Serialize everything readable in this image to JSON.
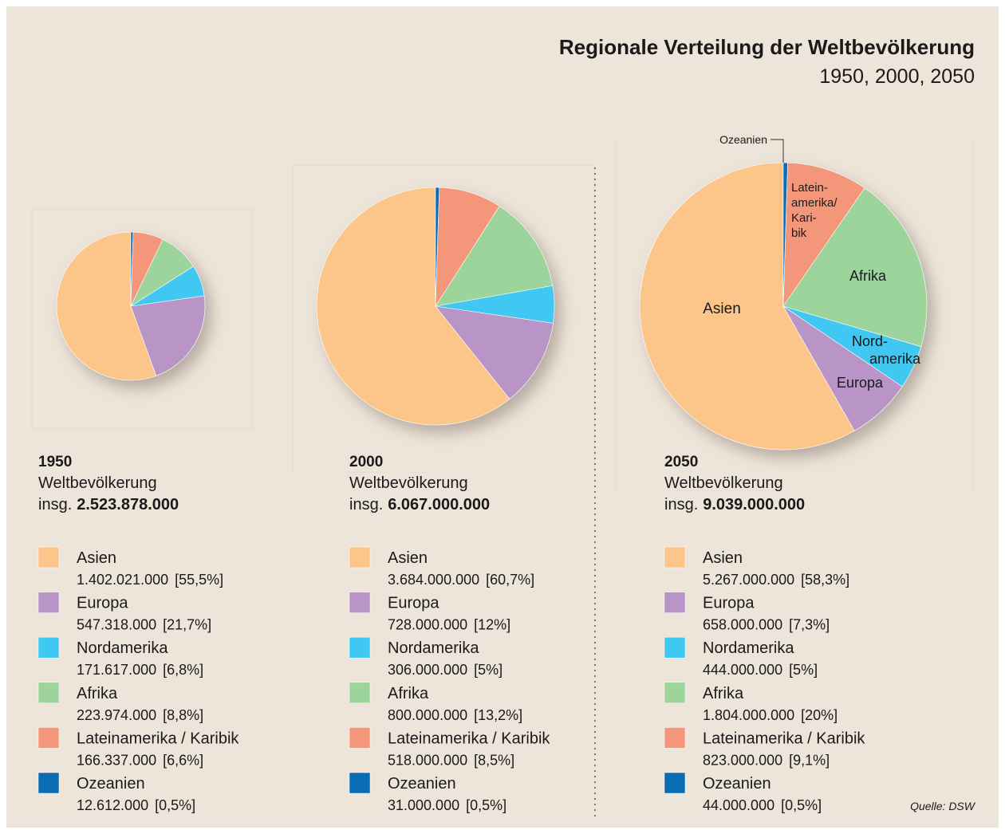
{
  "title": "Regionale Verteilung der Weltbevölkerung",
  "subtitle": "1950, 2000, 2050",
  "source": "Quelle: DSW",
  "chart_data": [
    {
      "type": "pie",
      "title": "1950",
      "subtitle": "Weltbevölkerung",
      "total_prefix": "insg.",
      "total": 2523878000,
      "total_label": "2.523.878.000",
      "categories": [
        "Asien",
        "Europa",
        "Nordamerika",
        "Afrika",
        "Lateinamerika / Karibik",
        "Ozeanien"
      ],
      "colors": [
        "#fcc68a",
        "#b994c6",
        "#3fc8f2",
        "#9dd49b",
        "#f4967a",
        "#0a6db3"
      ],
      "values": [
        1402021000,
        547318000,
        171617000,
        223974000,
        166337000,
        12612000
      ],
      "value_labels": [
        "1.402.021.000",
        "547.318.000",
        "171.617.000",
        "223.974.000",
        "166.337.000",
        "12.612.000"
      ],
      "shares": [
        55.5,
        21.7,
        6.8,
        8.8,
        6.6,
        0.5
      ],
      "share_labels": [
        "[55,5%]",
        "[21,7%]",
        "[6,8%]",
        "[8,8%]",
        "[6,6%]",
        "[0,5%]"
      ]
    },
    {
      "type": "pie",
      "title": "2000",
      "subtitle": "Weltbevölkerung",
      "total_prefix": "insg.",
      "total": 6067000000,
      "total_label": "6.067.000.000",
      "categories": [
        "Asien",
        "Europa",
        "Nordamerika",
        "Afrika",
        "Lateinamerika / Karibik",
        "Ozeanien"
      ],
      "colors": [
        "#fcc68a",
        "#b994c6",
        "#3fc8f2",
        "#9dd49b",
        "#f4967a",
        "#0a6db3"
      ],
      "values": [
        3684000000,
        728000000,
        306000000,
        800000000,
        518000000,
        31000000
      ],
      "value_labels": [
        "3.684.000.000",
        "728.000.000",
        "306.000.000",
        "800.000.000",
        "518.000.000",
        "31.000.000"
      ],
      "shares": [
        60.7,
        12,
        5,
        13.2,
        8.5,
        0.5
      ],
      "share_labels": [
        "[60,7%]",
        "[12%]",
        "[5%]",
        "[13,2%]",
        "[8,5%]",
        "[0,5%]"
      ]
    },
    {
      "type": "pie",
      "title": "2050",
      "subtitle": "Weltbevölkerung",
      "total_prefix": "insg.",
      "total": 9039000000,
      "total_label": "9.039.000.000",
      "categories": [
        "Asien",
        "Europa",
        "Nordamerika",
        "Afrika",
        "Lateinamerika / Karibik",
        "Ozeanien"
      ],
      "colors": [
        "#fcc68a",
        "#b994c6",
        "#3fc8f2",
        "#9dd49b",
        "#f4967a",
        "#0a6db3"
      ],
      "values": [
        5267000000,
        658000000,
        444000000,
        1804000000,
        823000000,
        44000000
      ],
      "value_labels": [
        "5.267.000.000",
        "658.000.000",
        "444.000.000",
        "1.804.000.000",
        "823.000.000",
        "44.000.000"
      ],
      "shares": [
        58.3,
        7.3,
        5,
        20,
        9.1,
        0.5
      ],
      "share_labels": [
        "[58,3%]",
        "[7,3%]",
        "[5%]",
        "[20%]",
        "[9,1%]",
        "[0,5%]"
      ],
      "slice_labels": [
        [
          "Asien"
        ],
        [
          "Europa"
        ],
        [
          "Nord-",
          "amerika"
        ],
        [
          "Afrika"
        ],
        [
          "Latein-",
          "amerika/",
          "Kari-",
          "bik"
        ],
        [
          "Ozeanien"
        ]
      ]
    }
  ]
}
